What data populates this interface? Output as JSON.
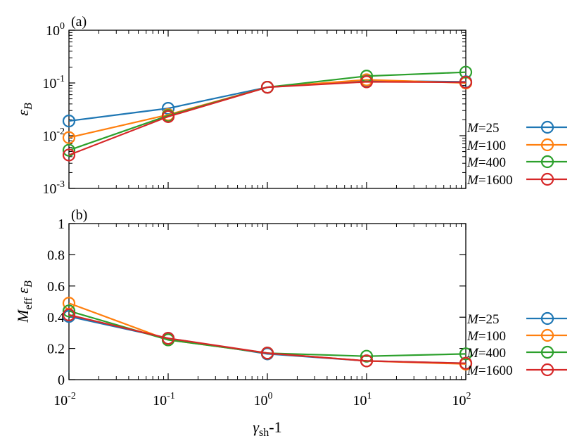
{
  "chart_data": [
    {
      "panel": "(a)",
      "type": "line",
      "x_scale": "log",
      "y_scale": "log",
      "x": [
        0.01,
        0.1,
        1,
        10,
        100
      ],
      "x_ticks": [
        0.01,
        0.1,
        1,
        10,
        100
      ],
      "x_tick_labels": [
        {
          "base": "10",
          "exp": "-2"
        },
        {
          "base": "10",
          "exp": "-1"
        },
        {
          "base": "10",
          "exp": "0"
        },
        {
          "base": "10",
          "exp": "1"
        },
        {
          "base": "10",
          "exp": "2"
        }
      ],
      "xlim": [
        0.01,
        100
      ],
      "ylim": [
        0.001,
        1
      ],
      "y_ticks": [
        0.001,
        0.01,
        0.1,
        1
      ],
      "y_tick_labels": [
        {
          "base": "10",
          "exp": "-3"
        },
        {
          "base": "10",
          "exp": "-2"
        },
        {
          "base": "10",
          "exp": "-1"
        },
        {
          "base": "10",
          "exp": "0"
        }
      ],
      "ylabel": {
        "symbol": "ε",
        "sub": "B"
      },
      "legend_position": "right",
      "series": [
        {
          "name": "=25",
          "label_prefix": "M",
          "color": "#1f77b4",
          "values": [
            0.019,
            0.033,
            0.083,
            0.11,
            0.105
          ]
        },
        {
          "name": "=100",
          "label_prefix": "M",
          "color": "#ff7f0e",
          "values": [
            0.0092,
            0.025,
            0.083,
            0.115,
            0.1
          ]
        },
        {
          "name": "=400",
          "label_prefix": "M",
          "color": "#2ca02c",
          "values": [
            0.0053,
            0.024,
            0.083,
            0.135,
            0.16
          ]
        },
        {
          "name": "=1600",
          "label_prefix": "M",
          "color": "#d62728",
          "values": [
            0.0043,
            0.023,
            0.083,
            0.105,
            0.103
          ]
        }
      ]
    },
    {
      "panel": "(b)",
      "type": "line",
      "x_scale": "log",
      "y_scale": "linear",
      "x": [
        0.01,
        0.1,
        1,
        10,
        100
      ],
      "x_ticks": [
        0.01,
        0.1,
        1,
        10,
        100
      ],
      "x_tick_labels": [
        {
          "base": "10",
          "exp": "-2"
        },
        {
          "base": "10",
          "exp": "-1"
        },
        {
          "base": "10",
          "exp": "0"
        },
        {
          "base": "10",
          "exp": "1"
        },
        {
          "base": "10",
          "exp": "2"
        }
      ],
      "xlim": [
        0.01,
        100
      ],
      "ylim": [
        0,
        1
      ],
      "y_ticks": [
        0,
        0.2,
        0.4,
        0.6,
        0.8,
        1
      ],
      "y_tick_labels": [
        "0",
        "0.2",
        "0.4",
        "0.6",
        "0.8",
        "1"
      ],
      "ylabel": {
        "m": "M",
        "msub": "eff",
        "symbol": "ε",
        "sub": "B"
      },
      "xlabel": {
        "symbol": "γ",
        "sub": "sh",
        "rest": "-1"
      },
      "legend_position": "right",
      "series": [
        {
          "name": "=25",
          "label_prefix": "M",
          "color": "#1f77b4",
          "values": [
            0.405,
            0.265,
            0.165,
            0.12,
            0.105
          ]
        },
        {
          "name": "=100",
          "label_prefix": "M",
          "color": "#ff7f0e",
          "values": [
            0.49,
            0.255,
            0.17,
            0.12,
            0.1
          ]
        },
        {
          "name": "=400",
          "label_prefix": "M",
          "color": "#2ca02c",
          "values": [
            0.44,
            0.255,
            0.17,
            0.15,
            0.165
          ]
        },
        {
          "name": "=1600",
          "label_prefix": "M",
          "color": "#d62728",
          "values": [
            0.415,
            0.265,
            0.17,
            0.12,
            0.105
          ]
        }
      ]
    }
  ]
}
